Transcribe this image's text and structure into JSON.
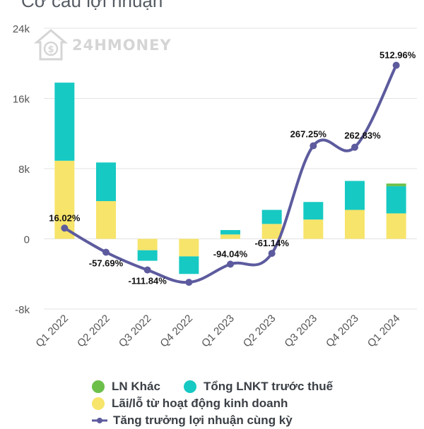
{
  "title": "Cơ cấu lợi nhuận",
  "watermark": "24HMONEY",
  "colors": {
    "ln_khac": "#6cc04a",
    "tong_lnkt": "#17c9c3",
    "lai_lo": "#f7e46a",
    "growth": "#5d5b9e",
    "grid": "#e3e3e3",
    "axis_text": "#555555"
  },
  "legend": {
    "ln_khac": "LN Khác",
    "tong_lnkt": "Tổng LNKT trước thuế",
    "lai_lo": "Lãi/lỗ từ hoạt động kinh doanh",
    "growth": "Tăng trưởng lợi nhuận cùng kỳ"
  },
  "chart_data": {
    "type": "bar",
    "categories": [
      "Q1 2022",
      "Q2 2022",
      "Q3 2022",
      "Q4 2022",
      "Q1 2023",
      "Q2 2023",
      "Q3 2023",
      "Q4 2023",
      "Q1 2024"
    ],
    "ylim": [
      -8000,
      24000
    ],
    "yticks": [
      -8000,
      0,
      8000,
      16000,
      24000
    ],
    "ytick_labels": [
      "-8k",
      "0",
      "8k",
      "16k",
      "24k"
    ],
    "grid": true,
    "series": [
      {
        "name": "Lãi/lỗ từ hoạt động kinh doanh",
        "values": [
          8900,
          4300,
          -1300,
          -2000,
          500,
          1700,
          2200,
          3300,
          2900
        ]
      },
      {
        "name": "Tổng LNKT trước thuế",
        "values": [
          8900,
          4400,
          -1200,
          -2000,
          500,
          1600,
          2000,
          3300,
          3100
        ]
      },
      {
        "name": "LN Khác",
        "values": [
          0,
          0,
          0,
          0,
          0,
          0,
          0,
          0,
          300
        ]
      }
    ],
    "line_series": {
      "name": "Tăng trưởng lợi nhuận cùng kỳ",
      "values": [
        16.02,
        -57.69,
        -111.84,
        -149.5,
        -94.04,
        -61.14,
        267.25,
        262.83,
        512.96
      ],
      "labels": [
        "16.02%",
        "-57.69%",
        "-111.84%",
        "",
        "-94.04%",
        "-61.14%",
        "267.25%",
        "262.83%",
        "512.96%"
      ]
    }
  }
}
